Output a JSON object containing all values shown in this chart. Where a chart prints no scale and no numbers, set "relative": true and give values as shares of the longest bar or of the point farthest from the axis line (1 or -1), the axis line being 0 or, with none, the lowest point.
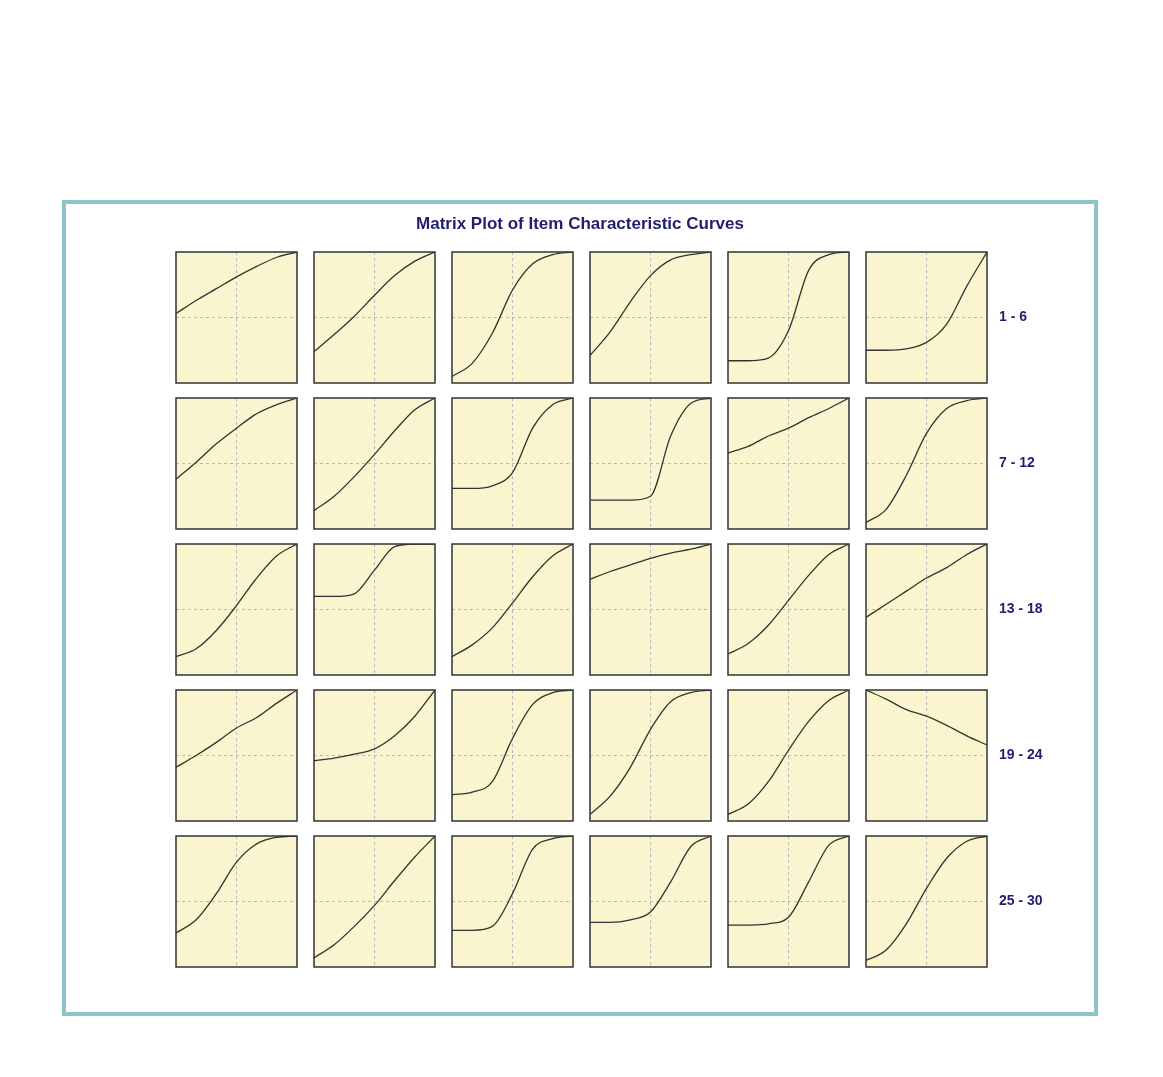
{
  "chart_data": [
    {
      "type": "other",
      "title": "Matrix Plot of Item Characteristic Curves"
    },
    {
      "type": "line",
      "relative": true,
      "grid": true,
      "categories": [
        null,
        null,
        null,
        null,
        null,
        null,
        null
      ],
      "series": [
        {
          "color": "#333333",
          "values": [
            0.53,
            0.63,
            0.72,
            0.81,
            0.89,
            0.96,
            1
          ]
        }
      ]
    },
    {
      "type": "line",
      "relative": true,
      "grid": true,
      "categories": [
        null,
        null,
        null,
        null,
        null,
        null,
        null
      ],
      "series": [
        {
          "color": "#333333",
          "values": [
            0.24,
            0.37,
            0.51,
            0.67,
            0.82,
            0.93,
            1
          ]
        }
      ]
    },
    {
      "type": "line",
      "relative": true,
      "grid": true,
      "categories": [
        null,
        null,
        null,
        null,
        null,
        null,
        null
      ],
      "series": [
        {
          "color": "#333333",
          "values": [
            0.05,
            0.15,
            0.38,
            0.71,
            0.91,
            0.98,
            1
          ]
        }
      ]
    },
    {
      "type": "line",
      "relative": true,
      "grid": true,
      "categories": [
        null,
        null,
        null,
        null,
        null,
        null,
        null
      ],
      "series": [
        {
          "color": "#333333",
          "values": [
            0.21,
            0.39,
            0.62,
            0.82,
            0.94,
            0.98,
            1
          ]
        }
      ]
    },
    {
      "type": "line",
      "relative": true,
      "grid": true,
      "categories": [
        null,
        null,
        null,
        null,
        null,
        null,
        null
      ],
      "series": [
        {
          "color": "#333333",
          "values": [
            0.17,
            0.17,
            0.19,
            0.4,
            0.86,
            0.98,
            1
          ]
        }
      ]
    },
    {
      "type": "line",
      "relative": true,
      "grid": true,
      "categories": [
        null,
        null,
        null,
        null,
        null,
        null,
        null
      ],
      "annotations": [
        "1 - 6"
      ],
      "series": [
        {
          "color": "#333333",
          "values": [
            0.25,
            0.25,
            0.26,
            0.31,
            0.45,
            0.74,
            1
          ]
        }
      ]
    },
    {
      "type": "line",
      "relative": true,
      "grid": true,
      "categories": [
        null,
        null,
        null,
        null,
        null,
        null,
        null
      ],
      "series": [
        {
          "color": "#333333",
          "values": [
            0.38,
            0.51,
            0.65,
            0.77,
            0.88,
            0.95,
            1
          ]
        }
      ]
    },
    {
      "type": "line",
      "relative": true,
      "grid": true,
      "categories": [
        null,
        null,
        null,
        null,
        null,
        null,
        null
      ],
      "series": [
        {
          "color": "#333333",
          "values": [
            0.14,
            0.25,
            0.4,
            0.57,
            0.75,
            0.91,
            1
          ]
        }
      ]
    },
    {
      "type": "line",
      "relative": true,
      "grid": true,
      "categories": [
        null,
        null,
        null,
        null,
        null,
        null,
        null
      ],
      "series": [
        {
          "color": "#333333",
          "values": [
            0.31,
            0.31,
            0.33,
            0.43,
            0.77,
            0.95,
            1
          ]
        }
      ]
    },
    {
      "type": "line",
      "relative": true,
      "grid": true,
      "categories": [
        null,
        null,
        null,
        null,
        null,
        null,
        null
      ],
      "series": [
        {
          "color": "#333333",
          "values": [
            0.22,
            0.22,
            0.22,
            0.25,
            0.71,
            0.96,
            1
          ]
        }
      ]
    },
    {
      "type": "line",
      "relative": true,
      "grid": true,
      "categories": [
        null,
        null,
        null,
        null,
        null,
        null,
        null
      ],
      "series": [
        {
          "color": "#333333",
          "values": [
            0.58,
            0.63,
            0.71,
            0.77,
            0.85,
            0.92,
            1
          ]
        }
      ]
    },
    {
      "type": "line",
      "relative": true,
      "grid": true,
      "categories": [
        null,
        null,
        null,
        null,
        null,
        null,
        null
      ],
      "annotations": [
        "7 - 12"
      ],
      "series": [
        {
          "color": "#333333",
          "values": [
            0.05,
            0.15,
            0.41,
            0.73,
            0.92,
            0.98,
            1
          ]
        }
      ]
    },
    {
      "type": "line",
      "relative": true,
      "grid": true,
      "categories": [
        null,
        null,
        null,
        null,
        null,
        null,
        null
      ],
      "series": [
        {
          "color": "#333333",
          "values": [
            0.14,
            0.2,
            0.34,
            0.53,
            0.74,
            0.91,
            1
          ]
        }
      ]
    },
    {
      "type": "line",
      "relative": true,
      "grid": true,
      "categories": [
        null,
        null,
        null,
        null,
        null,
        null,
        null
      ],
      "series": [
        {
          "color": "#333333",
          "values": [
            0.6,
            0.6,
            0.62,
            0.8,
            0.98,
            1,
            1
          ]
        }
      ]
    },
    {
      "type": "line",
      "relative": true,
      "grid": true,
      "categories": [
        null,
        null,
        null,
        null,
        null,
        null,
        null
      ],
      "series": [
        {
          "color": "#333333",
          "values": [
            0.14,
            0.23,
            0.36,
            0.55,
            0.75,
            0.91,
            1
          ]
        }
      ]
    },
    {
      "type": "line",
      "relative": true,
      "grid": true,
      "categories": [
        null,
        null,
        null,
        null,
        null,
        null,
        null
      ],
      "series": [
        {
          "color": "#333333",
          "values": [
            0.73,
            0.79,
            0.84,
            0.89,
            0.93,
            0.96,
            1
          ]
        }
      ]
    },
    {
      "type": "line",
      "relative": true,
      "grid": true,
      "categories": [
        null,
        null,
        null,
        null,
        null,
        null,
        null
      ],
      "series": [
        {
          "color": "#333333",
          "values": [
            0.16,
            0.24,
            0.38,
            0.57,
            0.76,
            0.92,
            1
          ]
        }
      ]
    },
    {
      "type": "line",
      "relative": true,
      "grid": true,
      "categories": [
        null,
        null,
        null,
        null,
        null,
        null,
        null
      ],
      "annotations": [
        "13 - 18"
      ],
      "series": [
        {
          "color": "#333333",
          "values": [
            0.44,
            0.54,
            0.64,
            0.74,
            0.82,
            0.92,
            1
          ]
        }
      ]
    },
    {
      "type": "line",
      "relative": true,
      "grid": true,
      "categories": [
        null,
        null,
        null,
        null,
        null,
        null,
        null
      ],
      "series": [
        {
          "color": "#333333",
          "values": [
            0.41,
            0.5,
            0.6,
            0.71,
            0.79,
            0.9,
            1
          ]
        }
      ]
    },
    {
      "type": "line",
      "relative": true,
      "grid": true,
      "categories": [
        null,
        null,
        null,
        null,
        null,
        null,
        null
      ],
      "series": [
        {
          "color": "#333333",
          "values": [
            0.46,
            0.48,
            0.51,
            0.55,
            0.65,
            0.8,
            1
          ]
        }
      ]
    },
    {
      "type": "line",
      "relative": true,
      "grid": true,
      "categories": [
        null,
        null,
        null,
        null,
        null,
        null,
        null
      ],
      "series": [
        {
          "color": "#333333",
          "values": [
            0.2,
            0.22,
            0.3,
            0.63,
            0.89,
            0.98,
            1
          ]
        }
      ]
    },
    {
      "type": "line",
      "relative": true,
      "grid": true,
      "categories": [
        null,
        null,
        null,
        null,
        null,
        null,
        null
      ],
      "series": [
        {
          "color": "#333333",
          "values": [
            0.05,
            0.19,
            0.41,
            0.7,
            0.91,
            0.98,
            1
          ]
        }
      ]
    },
    {
      "type": "line",
      "relative": true,
      "grid": true,
      "categories": [
        null,
        null,
        null,
        null,
        null,
        null,
        null
      ],
      "series": [
        {
          "color": "#333333",
          "values": [
            0.05,
            0.13,
            0.3,
            0.54,
            0.76,
            0.92,
            1
          ]
        }
      ]
    },
    {
      "type": "line",
      "relative": true,
      "grid": true,
      "categories": [
        null,
        null,
        null,
        null,
        null,
        null,
        null
      ],
      "annotations": [
        "19 - 24"
      ],
      "series": [
        {
          "color": "#333333",
          "values": [
            1,
            0.93,
            0.85,
            0.8,
            0.73,
            0.65,
            0.58
          ]
        }
      ]
    },
    {
      "type": "line",
      "relative": true,
      "grid": true,
      "categories": [
        null,
        null,
        null,
        null,
        null,
        null,
        null
      ],
      "series": [
        {
          "color": "#333333",
          "values": [
            0.26,
            0.36,
            0.56,
            0.8,
            0.94,
            0.99,
            1
          ]
        }
      ]
    },
    {
      "type": "line",
      "relative": true,
      "grid": true,
      "categories": [
        null,
        null,
        null,
        null,
        null,
        null,
        null
      ],
      "series": [
        {
          "color": "#333333",
          "values": [
            0.07,
            0.17,
            0.31,
            0.47,
            0.66,
            0.84,
            1
          ]
        }
      ]
    },
    {
      "type": "line",
      "relative": true,
      "grid": true,
      "categories": [
        null,
        null,
        null,
        null,
        null,
        null,
        null
      ],
      "series": [
        {
          "color": "#333333",
          "values": [
            0.28,
            0.28,
            0.31,
            0.56,
            0.9,
            0.98,
            1
          ]
        }
      ]
    },
    {
      "type": "line",
      "relative": true,
      "grid": true,
      "categories": [
        null,
        null,
        null,
        null,
        null,
        null,
        null
      ],
      "series": [
        {
          "color": "#333333",
          "values": [
            0.34,
            0.34,
            0.36,
            0.42,
            0.65,
            0.92,
            1
          ]
        }
      ]
    },
    {
      "type": "line",
      "relative": true,
      "grid": true,
      "categories": [
        null,
        null,
        null,
        null,
        null,
        null,
        null
      ],
      "series": [
        {
          "color": "#333333",
          "values": [
            0.32,
            0.32,
            0.33,
            0.38,
            0.65,
            0.93,
            1
          ]
        }
      ]
    },
    {
      "type": "line",
      "relative": true,
      "grid": true,
      "categories": [
        null,
        null,
        null,
        null,
        null,
        null,
        null
      ],
      "annotations": [
        "25 - 30"
      ],
      "series": [
        {
          "color": "#333333",
          "values": [
            0.05,
            0.13,
            0.33,
            0.6,
            0.83,
            0.96,
            1
          ]
        }
      ]
    }
  ]
}
